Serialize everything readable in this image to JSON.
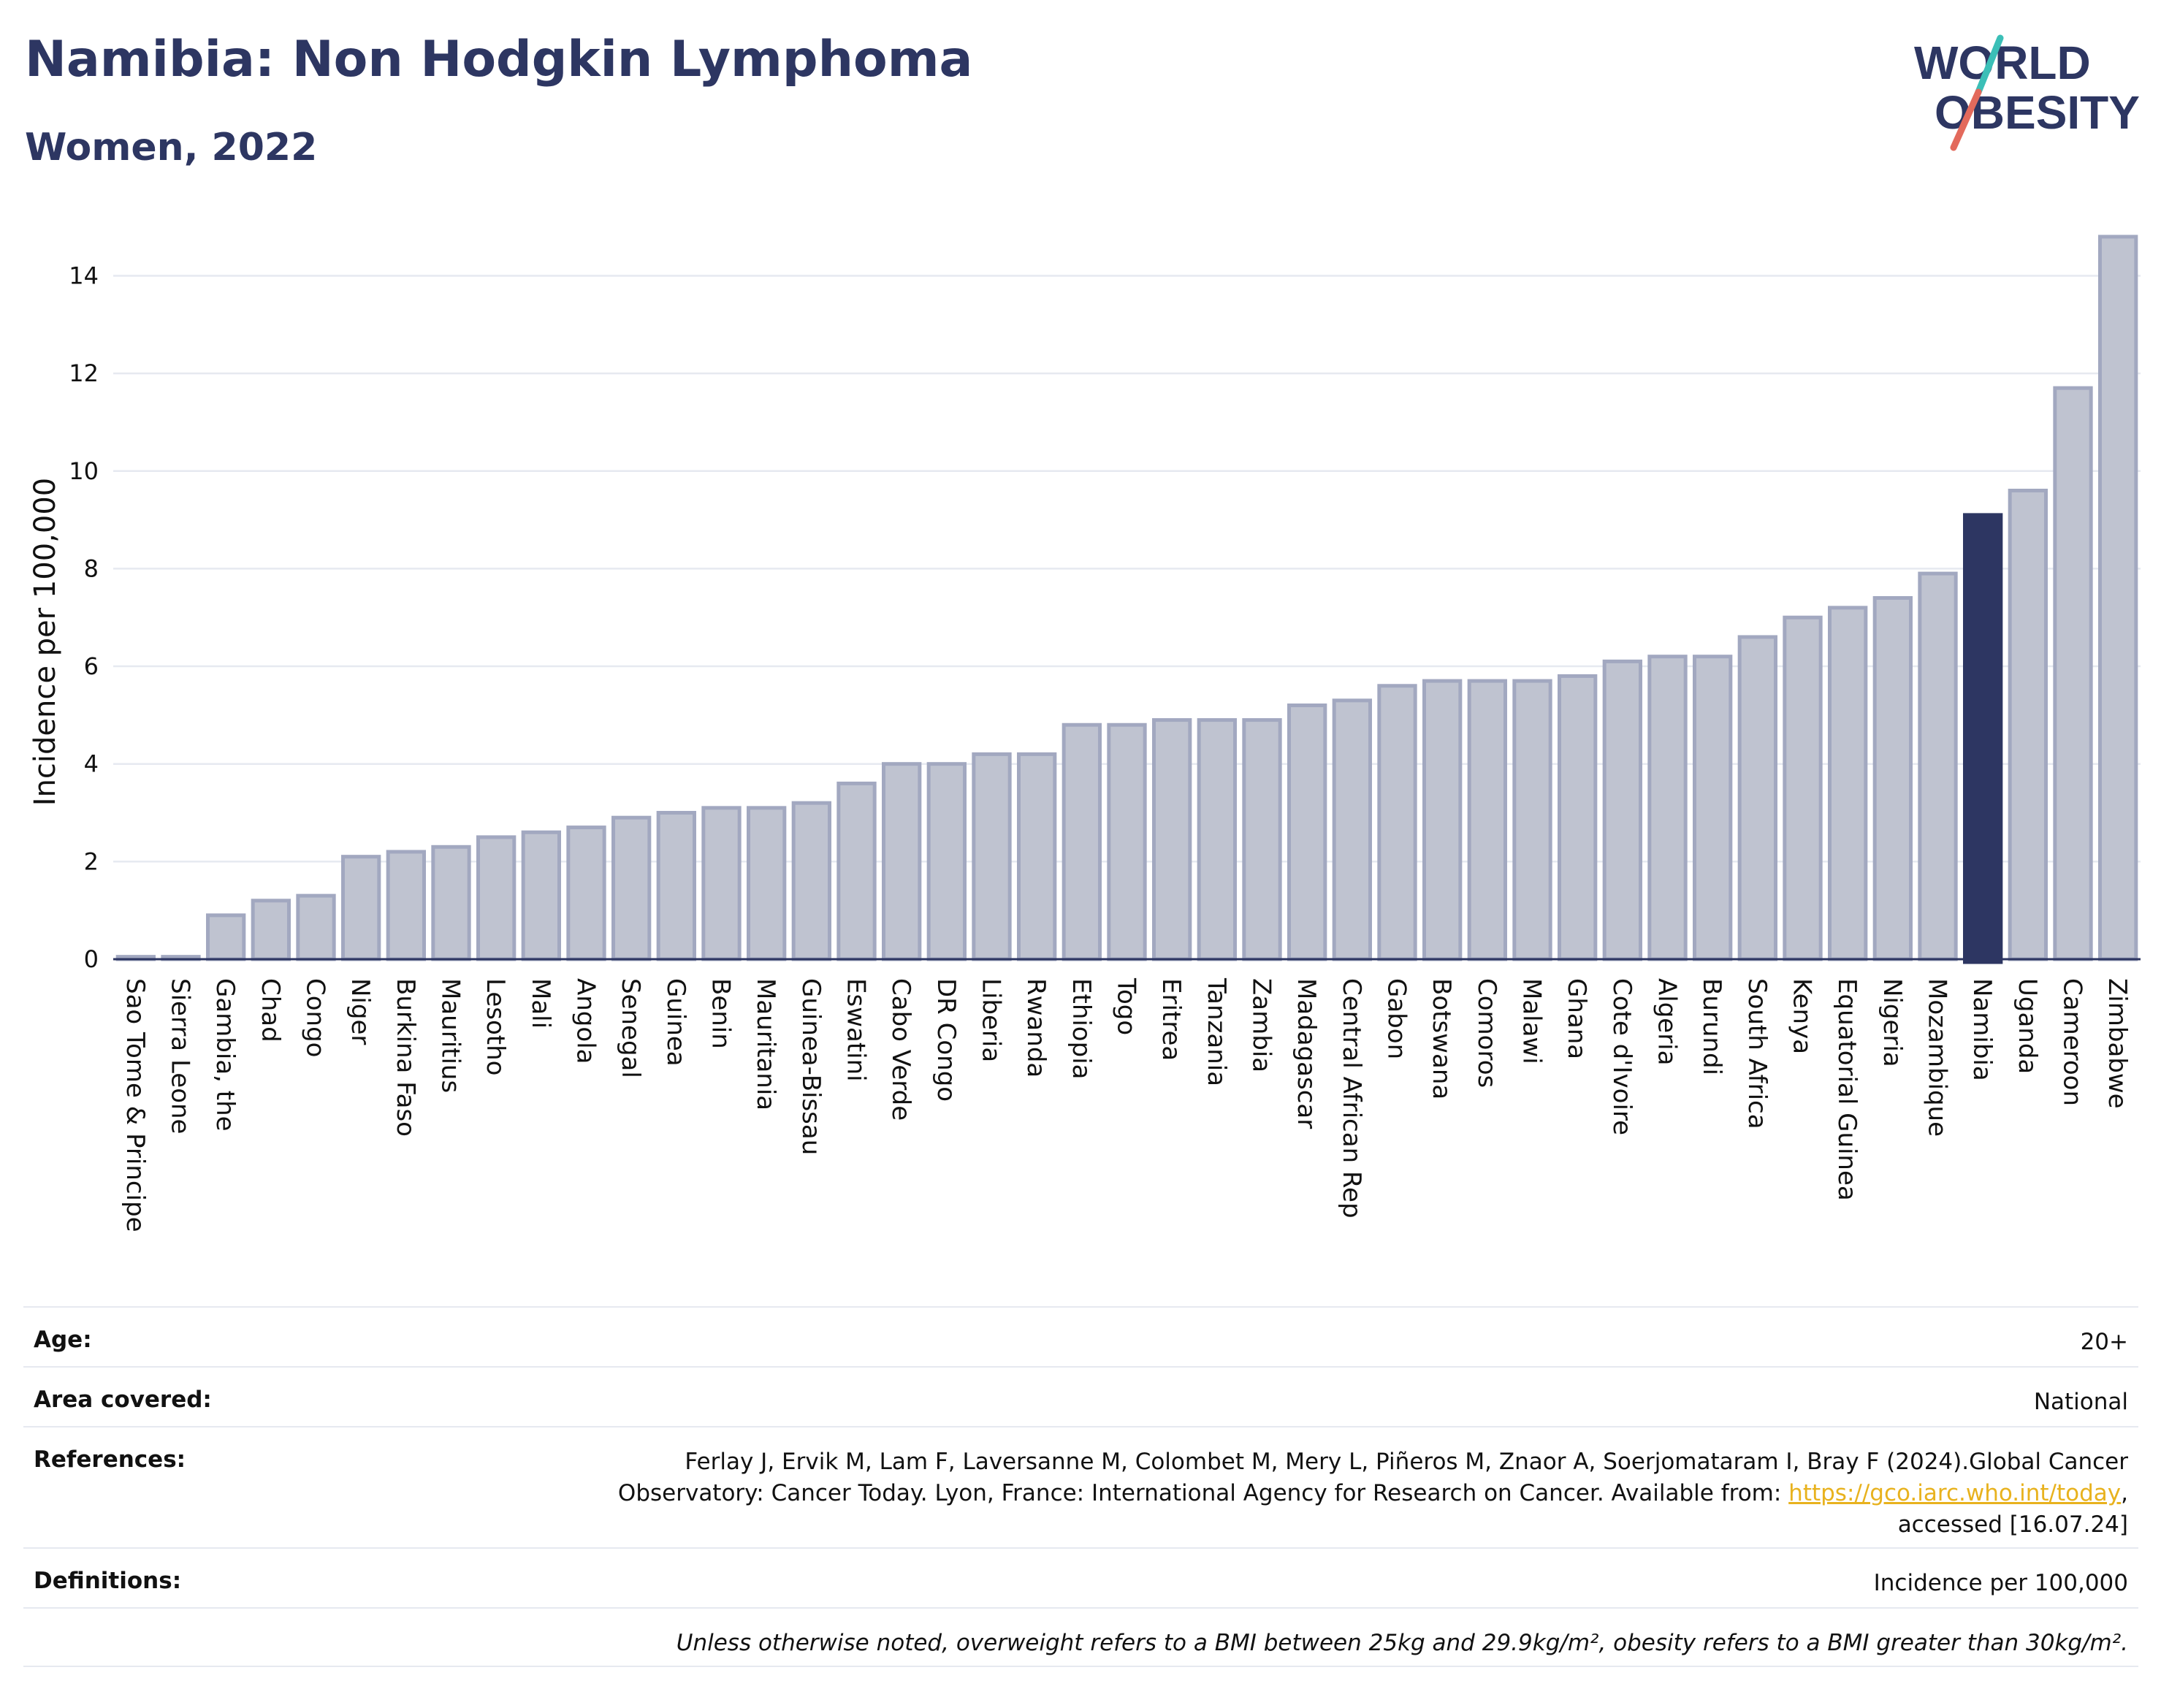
{
  "header": {
    "title": "Namibia: Non Hodgkin Lymphoma",
    "subtitle": "Women, 2022"
  },
  "logo": {
    "line1": "WORLD",
    "line2": "OBESITY",
    "accent_teal": "#3bbfb7",
    "accent_coral": "#e36a5c"
  },
  "colors": {
    "bar": "#bfc3d0",
    "bar_stroke": "#a2a8c0",
    "highlight": "#2d3662",
    "grid": "#e6e9f0",
    "text": "#2d3662"
  },
  "chart_data": {
    "type": "bar",
    "title": "Namibia: Non Hodgkin Lymphoma",
    "subtitle": "Women, 2022",
    "xlabel": "",
    "ylabel": "Incidence per 100,000",
    "ylim": [
      0,
      14.8
    ],
    "yticks": [
      0,
      2,
      4,
      6,
      8,
      10,
      12,
      14
    ],
    "grid": true,
    "legend": "none",
    "highlight": "Namibia",
    "categories": [
      "Sao Tome & Principe",
      "Sierra Leone",
      "Gambia, the",
      "Chad",
      "Congo",
      "Niger",
      "Burkina Faso",
      "Mauritius",
      "Lesotho",
      "Mali",
      "Angola",
      "Senegal",
      "Guinea",
      "Benin",
      "Mauritania",
      "Guinea-Bissau",
      "Eswatini",
      "Cabo Verde",
      "DR Congo",
      "Liberia",
      "Rwanda",
      "Ethiopia",
      "Togo",
      "Eritrea",
      "Tanzania",
      "Zambia",
      "Madagascar",
      "Central African Rep",
      "Gabon",
      "Botswana",
      "Comoros",
      "Malawi",
      "Ghana",
      "Cote d'Ivoire",
      "Algeria",
      "Burundi",
      "South Africa",
      "Kenya",
      "Equatorial Guinea",
      "Nigeria",
      "Mozambique",
      "Namibia",
      "Uganda",
      "Cameroon",
      "Zimbabwe"
    ],
    "values": [
      0.05,
      0.05,
      0.9,
      1.2,
      1.3,
      2.1,
      2.2,
      2.3,
      2.5,
      2.6,
      2.7,
      2.9,
      3.0,
      3.1,
      3.1,
      3.2,
      3.6,
      4.0,
      4.0,
      4.2,
      4.2,
      4.8,
      4.8,
      4.9,
      4.9,
      4.9,
      5.2,
      5.3,
      5.6,
      5.7,
      5.7,
      5.7,
      5.8,
      6.1,
      6.2,
      6.2,
      6.6,
      7.0,
      7.2,
      7.4,
      7.9,
      9.1,
      9.6,
      11.7,
      14.8
    ]
  },
  "meta": {
    "age_label": "Age:",
    "age_value": "20+",
    "area_label": "Area covered:",
    "area_value": "National",
    "references_label": "References:",
    "references_text": "Ferlay J, Ervik M, Lam F, Laversanne M, Colombet M, Mery L, Piñeros M, Znaor A, Soerjomataram I, Bray F (2024).Global Cancer Observatory: Cancer Today. Lyon, France: International Agency for Research on Cancer. Available from: ",
    "references_link": "https://gco.iarc.who.int/today",
    "references_suffix": ", accessed [16.07.24]",
    "definitions_label": "Definitions:",
    "definitions_value": "Incidence per 100,000",
    "note": "Unless otherwise noted, overweight refers to a BMI between 25kg and 29.9kg/m², obesity refers to a BMI greater than 30kg/m²."
  }
}
